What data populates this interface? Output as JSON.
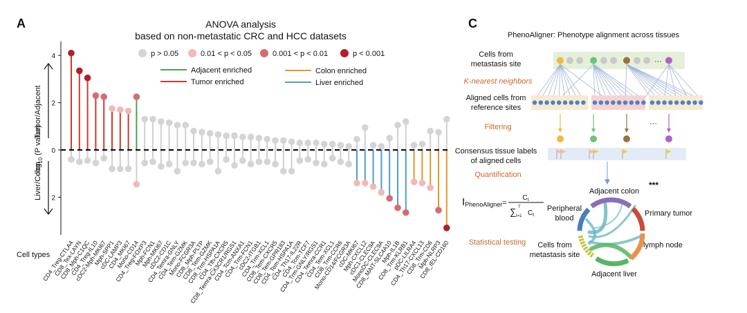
{
  "panel_a": {
    "letter": "A",
    "title_line1": "ANOVA analysis",
    "title_line2": "based on non-metastatic CRC and HCC datasets",
    "y_axis_label_up": "Tumor/Adjacent",
    "y_axis_label_mid_prefix": "-log",
    "y_axis_label_mid_sub": "10",
    "y_axis_label_mid_suffix": " (P value)",
    "y_axis_label_down": "Liver/Colon",
    "x_axis_title": "Cell types",
    "pvalue_legend": [
      {
        "label": "p > 0.05",
        "color": "#d4d4d4"
      },
      {
        "label": "0.01 < p < 0.05",
        "color": "#f0b9b9"
      },
      {
        "label": "0.001 < p < 0.01",
        "color": "#d96a72"
      },
      {
        "label": "p < 0.001",
        "color": "#b0202a"
      }
    ],
    "line_legend": [
      {
        "label": "Adjacent enriched",
        "color": "#4ea24a"
      },
      {
        "label": "Tumor enriched",
        "color": "#c93a2e"
      },
      {
        "label": "Colon enriched",
        "color": "#e0982c"
      },
      {
        "label": "Liver enriched",
        "color": "#4f9ccc"
      }
    ]
  },
  "chart_data": {
    "type": "lollipop",
    "ylim": [
      -3.6,
      4.3
    ],
    "y_ticks": [
      -2,
      0,
      2,
      4
    ],
    "y_tick_labels": [
      "2",
      "0",
      "2",
      "4"
    ],
    "xlabel": "Cell types",
    "ylabel": "-log10 (P value)",
    "categories": [
      "CD4_Treg-CTLA4",
      "CD8_Tex-LAYN",
      "CD8_Mph-C1QC",
      "CD4_Treg-IL10",
      "cDC2-Mph-MKI67",
      "Mph-SPP1",
      "cDC-LAMP3",
      "CD4_MKI67",
      "Mono-CD14",
      "CD4_Treg-FOXP3",
      "Mph-FCN1",
      "Mph-MKI67",
      "cDC2-CD1C",
      "CD4_Temra-GNLY",
      "CD4_Tem-GZMK",
      "Mono-FCGR3A",
      "CD8_Mph-PLTP",
      "CD8_Tem-GZMK",
      "CD8_Trm-HSPA1A",
      "CD4_Tfh-CXCR5",
      "CD8_Temra-CX3CR1/RGS1",
      "CD4_Tcm-ANXA1",
      "CD4_Trm-FCN1",
      "cDC2-ITGB1",
      "CD4_Trm-XCL1",
      "CD8_Tem-CXCR5",
      "CD8_Tem-GPR183",
      "CD4_Tem-HSPA1A",
      "CD4_Th17-IL22R",
      "CD4_Tcm-TCF7",
      "CD4_Trm-GNLY/RGS1",
      "CD4_Temra-CCR1",
      "CD4_Tem-XCL1",
      "CD8_Trm-CCR6",
      "Mono-CD14/FCGR3A",
      "cDC-MKI67",
      "Mph-CXCL12",
      "cDC1-CLEC9A",
      "MonoDC-CLEC9A",
      "CD8_MAIT-SLC4A10",
      "Mph-IL1B",
      "CD8_Trm-KLRB1",
      "pDC-LILRA4",
      "CD4_Th17-CXCL13",
      "CD8_Trm-CD6",
      "Mph-NLRP3",
      "CD8_IEL-CD160"
    ],
    "series": [
      {
        "name": "Tumor/Adjacent",
        "values": [
          4.1,
          3.35,
          3.05,
          2.3,
          2.25,
          1.75,
          1.7,
          1.65,
          2.25,
          1.3,
          1.3,
          1.2,
          1.15,
          1.05,
          1.05,
          0.8,
          0.75,
          0.7,
          0.65,
          0.6,
          0.6,
          0.55,
          0.55,
          0.5,
          0.45,
          0.4,
          0.4,
          0.35,
          0.3,
          0.3,
          0.3,
          0.25,
          0.25,
          0.2,
          0.15,
          0.45,
          0.95,
          0.2,
          0.15,
          0.5,
          1.05,
          1.2,
          0.2,
          0.25,
          0.8,
          0.75,
          1.3
        ],
        "colors": [
          "#b0202a",
          "#b0202a",
          "#b0202a",
          "#d96a72",
          "#d96a72",
          "#f0b9b9",
          "#f0b9b9",
          "#f0b9b9",
          "#d96a72",
          "#d4d4d4",
          "#d4d4d4",
          "#d4d4d4",
          "#d4d4d4",
          "#d4d4d4",
          "#d4d4d4",
          "#d4d4d4",
          "#d4d4d4",
          "#d4d4d4",
          "#d4d4d4",
          "#d4d4d4",
          "#d4d4d4",
          "#d4d4d4",
          "#d4d4d4",
          "#d4d4d4",
          "#d4d4d4",
          "#d4d4d4",
          "#d4d4d4",
          "#d4d4d4",
          "#d4d4d4",
          "#d4d4d4",
          "#d4d4d4",
          "#d4d4d4",
          "#d4d4d4",
          "#d4d4d4",
          "#d4d4d4",
          "#d4d4d4",
          "#d4d4d4",
          "#d4d4d4",
          "#d4d4d4",
          "#d4d4d4",
          "#d4d4d4",
          "#d4d4d4",
          "#d4d4d4",
          "#d4d4d4",
          "#d4d4d4",
          "#d4d4d4",
          "#d4d4d4"
        ],
        "enriched": [
          "tumor",
          "tumor",
          "tumor",
          "tumor",
          "tumor",
          "tumor",
          "tumor",
          "tumor",
          "adjacent",
          "",
          "",
          "",
          "",
          "",
          "",
          "",
          "",
          "",
          "",
          "",
          "",
          "",
          "",
          "",
          "",
          "",
          "",
          "",
          "",
          "",
          "",
          "",
          "",
          "",
          "",
          "",
          "",
          "",
          "",
          "",
          "",
          "",
          "",
          "",
          "",
          "",
          ""
        ]
      },
      {
        "name": "Liver/Colon",
        "values": [
          -0.4,
          -0.5,
          -0.45,
          -0.55,
          -0.35,
          -0.8,
          -0.8,
          -0.8,
          -1.45,
          -0.55,
          -0.5,
          -0.7,
          -0.6,
          -0.9,
          -0.55,
          -0.55,
          -0.6,
          -0.5,
          -0.9,
          -0.4,
          -0.65,
          -0.45,
          -0.6,
          -0.5,
          -0.5,
          -0.6,
          -0.9,
          -0.9,
          -0.45,
          -0.4,
          -0.55,
          -0.6,
          -0.35,
          -0.5,
          -0.6,
          -1.4,
          -1.4,
          -1.55,
          -1.8,
          -2.05,
          -2.45,
          -2.65,
          -1.35,
          -1.4,
          -1.6,
          -2.55,
          -3.3
        ],
        "colors": [
          "#d4d4d4",
          "#d4d4d4",
          "#d4d4d4",
          "#d4d4d4",
          "#d4d4d4",
          "#d4d4d4",
          "#d4d4d4",
          "#d4d4d4",
          "#f0b9b9",
          "#d4d4d4",
          "#d4d4d4",
          "#d4d4d4",
          "#d4d4d4",
          "#d4d4d4",
          "#d4d4d4",
          "#d4d4d4",
          "#d4d4d4",
          "#d4d4d4",
          "#d4d4d4",
          "#d4d4d4",
          "#d4d4d4",
          "#d4d4d4",
          "#d4d4d4",
          "#d4d4d4",
          "#d4d4d4",
          "#d4d4d4",
          "#d4d4d4",
          "#d4d4d4",
          "#d4d4d4",
          "#d4d4d4",
          "#d4d4d4",
          "#d4d4d4",
          "#d4d4d4",
          "#d4d4d4",
          "#d4d4d4",
          "#f0b9b9",
          "#f0b9b9",
          "#f0b9b9",
          "#f0b9b9",
          "#d96a72",
          "#d96a72",
          "#d96a72",
          "#f0b9b9",
          "#f0b9b9",
          "#f0b9b9",
          "#d96a72",
          "#b0202a"
        ],
        "enriched": [
          "",
          "",
          "",
          "",
          "",
          "",
          "",
          "",
          "",
          "",
          "",
          "",
          "",
          "",
          "",
          "",
          "",
          "",
          "",
          "",
          "",
          "",
          "",
          "",
          "",
          "",
          "",
          "",
          "",
          "",
          "",
          "",
          "",
          "",
          "",
          "liver",
          "liver",
          "liver",
          "liver",
          "liver",
          "liver",
          "liver",
          "colon",
          "colon",
          "colon",
          "colon",
          "colon"
        ]
      }
    ]
  },
  "panel_c": {
    "letter": "C",
    "title": "PhenoAligner: Phenotype alignment across tissues",
    "cells_from_metastasis_line1": "Cells from",
    "cells_from_metastasis_line2": "metastasis site",
    "knn": "K-nearest neighbors",
    "aligned_line1": "Aligned cells from",
    "aligned_line2": "reference sites",
    "filtering": "Filtering",
    "consensus_line1": "Consensus tissue labels",
    "consensus_line2": "of aligned cells",
    "quantification": "Quantification",
    "ellipsis": "···",
    "formula_lhs_main": "I",
    "formula_lhs_sub": "PhenoAligner",
    "formula_equals": "=",
    "formula_num": "C",
    "formula_num_sub": "t",
    "formula_den_sum": "∑",
    "formula_den_top": "T",
    "formula_den_bottom": "t=1",
    "formula_den_c": "C",
    "formula_den_sub": "t",
    "stat_testing": "Statistical testing",
    "chord_labels": {
      "adjacent_colon": "Adjacent colon",
      "primary_tumor": "Primary tumor",
      "lymph_node": "lymph node",
      "adjacent_liver": "Adjacent liver",
      "peripheral_line1": "Peripheral",
      "peripheral_line2": "blood",
      "metastasis_line1": "Cells from",
      "metastasis_line2": "metastasis site"
    },
    "significance": "***",
    "dot_colors": [
      "#f4b740",
      "#c9c9c9",
      "#c9c9c9",
      "#6fc27a",
      "#c9c9c9",
      "#c9c9c9",
      "#9a7241",
      "#c9c9c9",
      "#c9c9c9",
      "#b261c2"
    ],
    "chord_colors": {
      "adjacent_colon": "#8a6fb8",
      "primary_tumor": "#c94b3b",
      "lymph_node": "#e8924a",
      "adjacent_liver": "#5bb463",
      "peripheral_blood": "#4a7fb8",
      "metastasis": "#c7c33b",
      "link": "#6ab9c4"
    }
  }
}
